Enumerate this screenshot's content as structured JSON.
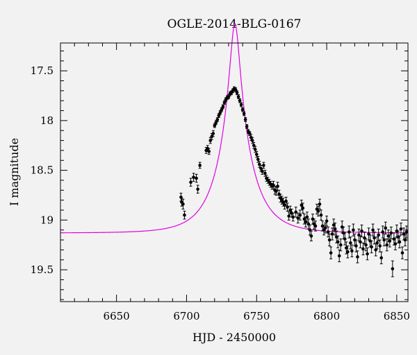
{
  "chart_data": {
    "type": "scatter",
    "title": "OGLE-2014-BLG-0167",
    "xlabel": "HJD - 2450000",
    "ylabel": "I magnitude",
    "xlim": [
      6610,
      6858
    ],
    "ylim": [
      19.82,
      17.22
    ],
    "y_inverted": true,
    "x_ticks": [
      6650,
      6700,
      6750,
      6800,
      6850
    ],
    "y_ticks": [
      17.5,
      18,
      18.5,
      19,
      19.5
    ],
    "x_tick_labels": [
      "6650",
      "6700",
      "6750",
      "6800",
      "6850"
    ],
    "y_tick_labels": [
      "17.5",
      "18",
      "18.5",
      "19",
      "19.5"
    ],
    "grid": false,
    "model_color": "#e000e0",
    "model": {
      "name": "",
      "t0": 6734.5,
      "u0": 0.145,
      "tE": 22.0,
      "baseline_mag": 19.13
    },
    "series": [
      {
        "name": "",
        "points": [
          [
            6696.0,
            18.77,
            0.04
          ],
          [
            6696.5,
            18.82,
            0.04
          ],
          [
            6697.5,
            18.84,
            0.05
          ],
          [
            6698.5,
            18.95,
            0.04
          ],
          [
            6703.0,
            18.62,
            0.04
          ],
          [
            6705.0,
            18.57,
            0.04
          ],
          [
            6707.0,
            18.58,
            0.04
          ],
          [
            6708.0,
            18.69,
            0.04
          ],
          [
            6709.5,
            18.45,
            0.03
          ],
          [
            6714.0,
            18.3,
            0.03
          ],
          [
            6715.0,
            18.28,
            0.03
          ],
          [
            6716.0,
            18.31,
            0.03
          ],
          [
            6717.0,
            18.2,
            0.03
          ],
          [
            6718.0,
            18.16,
            0.03
          ],
          [
            6719.0,
            18.13,
            0.03
          ],
          [
            6720.0,
            18.05,
            0.02
          ],
          [
            6721.0,
            18.02,
            0.02
          ],
          [
            6722.0,
            17.99,
            0.02
          ],
          [
            6723.0,
            17.95,
            0.02
          ],
          [
            6724.0,
            17.92,
            0.02
          ],
          [
            6725.0,
            17.89,
            0.02
          ],
          [
            6726.0,
            17.86,
            0.02
          ],
          [
            6727.0,
            17.82,
            0.02
          ],
          [
            6728.0,
            17.79,
            0.02
          ],
          [
            6729.0,
            17.77,
            0.02
          ],
          [
            6730.0,
            17.76,
            0.02
          ],
          [
            6731.0,
            17.73,
            0.02
          ],
          [
            6732.0,
            17.72,
            0.02
          ],
          [
            6733.0,
            17.7,
            0.02
          ],
          [
            6734.0,
            17.68,
            0.02
          ],
          [
            6735.0,
            17.69,
            0.02
          ],
          [
            6736.0,
            17.72,
            0.02
          ],
          [
            6737.0,
            17.76,
            0.02
          ],
          [
            6738.0,
            17.8,
            0.02
          ],
          [
            6739.0,
            17.84,
            0.02
          ],
          [
            6740.0,
            17.89,
            0.02
          ],
          [
            6741.0,
            17.93,
            0.02
          ],
          [
            6742.0,
            17.99,
            0.02
          ],
          [
            6743.0,
            18.06,
            0.02
          ],
          [
            6744.0,
            18.11,
            0.02
          ],
          [
            6745.0,
            18.13,
            0.02
          ],
          [
            6746.0,
            18.17,
            0.03
          ],
          [
            6747.0,
            18.2,
            0.03
          ],
          [
            6748.0,
            18.25,
            0.03
          ],
          [
            6749.0,
            18.29,
            0.03
          ],
          [
            6750.0,
            18.34,
            0.03
          ],
          [
            6751.0,
            18.39,
            0.03
          ],
          [
            6752.0,
            18.44,
            0.03
          ],
          [
            6753.0,
            18.48,
            0.03
          ],
          [
            6754.0,
            18.51,
            0.03
          ],
          [
            6755.0,
            18.45,
            0.03
          ],
          [
            6756.0,
            18.53,
            0.03
          ],
          [
            6757.0,
            18.58,
            0.03
          ],
          [
            6758.0,
            18.6,
            0.03
          ],
          [
            6759.0,
            18.62,
            0.03
          ],
          [
            6760.0,
            18.64,
            0.03
          ],
          [
            6761.0,
            18.66,
            0.03
          ],
          [
            6762.0,
            18.65,
            0.04
          ],
          [
            6763.0,
            18.7,
            0.04
          ],
          [
            6764.0,
            18.71,
            0.04
          ],
          [
            6765.0,
            18.66,
            0.04
          ],
          [
            6766.0,
            18.74,
            0.04
          ],
          [
            6767.0,
            18.78,
            0.04
          ],
          [
            6768.0,
            18.8,
            0.04
          ],
          [
            6769.0,
            18.82,
            0.04
          ],
          [
            6770.0,
            18.85,
            0.04
          ],
          [
            6771.0,
            18.81,
            0.04
          ],
          [
            6772.0,
            18.87,
            0.04
          ],
          [
            6773.0,
            18.96,
            0.04
          ],
          [
            6774.0,
            18.9,
            0.04
          ],
          [
            6775.0,
            18.93,
            0.04
          ],
          [
            6776.0,
            18.97,
            0.04
          ],
          [
            6778.0,
            18.92,
            0.05
          ],
          [
            6779.5,
            18.98,
            0.05
          ],
          [
            6781.0,
            18.95,
            0.05
          ],
          [
            6782.0,
            18.85,
            0.05
          ],
          [
            6783.0,
            18.88,
            0.05
          ],
          [
            6784.0,
            18.99,
            0.05
          ],
          [
            6785.0,
            19.02,
            0.05
          ],
          [
            6786.0,
            18.97,
            0.05
          ],
          [
            6787.0,
            19.04,
            0.05
          ],
          [
            6788.0,
            19.1,
            0.05
          ],
          [
            6789.0,
            19.16,
            0.05
          ],
          [
            6790.0,
            18.99,
            0.05
          ],
          [
            6791.0,
            19.04,
            0.05
          ],
          [
            6792.0,
            19.06,
            0.05
          ],
          [
            6793.0,
            18.89,
            0.05
          ],
          [
            6794.0,
            18.91,
            0.05
          ],
          [
            6795.0,
            18.84,
            0.05
          ],
          [
            6796.0,
            18.95,
            0.05
          ],
          [
            6797.0,
            19.06,
            0.05
          ],
          [
            6798.0,
            19.1,
            0.05
          ],
          [
            6799.0,
            19.08,
            0.05
          ],
          [
            6800.0,
            19.01,
            0.05
          ],
          [
            6801.0,
            19.12,
            0.05
          ],
          [
            6802.0,
            19.2,
            0.06
          ],
          [
            6803.0,
            19.33,
            0.06
          ],
          [
            6804.0,
            19.14,
            0.06
          ],
          [
            6805.0,
            19.05,
            0.06
          ],
          [
            6806.0,
            19.09,
            0.06
          ],
          [
            6807.0,
            19.17,
            0.06
          ],
          [
            6808.0,
            19.22,
            0.06
          ],
          [
            6809.0,
            19.36,
            0.06
          ],
          [
            6810.0,
            19.25,
            0.06
          ],
          [
            6811.0,
            19.07,
            0.06
          ],
          [
            6812.0,
            19.13,
            0.06
          ],
          [
            6813.0,
            19.19,
            0.06
          ],
          [
            6814.0,
            19.28,
            0.06
          ],
          [
            6815.0,
            19.32,
            0.06
          ],
          [
            6816.0,
            19.12,
            0.06
          ],
          [
            6817.0,
            19.23,
            0.06
          ],
          [
            6818.0,
            19.31,
            0.06
          ],
          [
            6819.0,
            19.1,
            0.06
          ],
          [
            6820.0,
            19.2,
            0.06
          ],
          [
            6821.0,
            19.26,
            0.06
          ],
          [
            6822.0,
            19.37,
            0.06
          ],
          [
            6823.0,
            19.15,
            0.06
          ],
          [
            6824.0,
            19.22,
            0.06
          ],
          [
            6825.0,
            19.11,
            0.06
          ],
          [
            6826.0,
            19.29,
            0.06
          ],
          [
            6827.0,
            19.18,
            0.06
          ],
          [
            6828.0,
            19.25,
            0.06
          ],
          [
            6829.0,
            19.34,
            0.06
          ],
          [
            6830.0,
            19.14,
            0.06
          ],
          [
            6831.0,
            19.21,
            0.06
          ],
          [
            6832.0,
            19.27,
            0.06
          ],
          [
            6833.0,
            19.1,
            0.06
          ],
          [
            6834.0,
            19.18,
            0.06
          ],
          [
            6835.0,
            19.3,
            0.06
          ],
          [
            6836.0,
            19.23,
            0.06
          ],
          [
            6837.0,
            19.15,
            0.06
          ],
          [
            6838.0,
            19.26,
            0.06
          ],
          [
            6839.0,
            19.38,
            0.06
          ],
          [
            6840.0,
            19.12,
            0.06
          ],
          [
            6841.0,
            19.2,
            0.06
          ],
          [
            6842.0,
            19.08,
            0.06
          ],
          [
            6843.0,
            19.25,
            0.06
          ],
          [
            6844.0,
            19.16,
            0.06
          ],
          [
            6845.0,
            19.21,
            0.06
          ],
          [
            6846.0,
            19.13,
            0.06
          ],
          [
            6847.0,
            19.49,
            0.08
          ],
          [
            6848.0,
            19.19,
            0.06
          ],
          [
            6849.0,
            19.24,
            0.06
          ],
          [
            6850.0,
            19.11,
            0.06
          ],
          [
            6851.0,
            19.17,
            0.06
          ],
          [
            6852.0,
            19.22,
            0.06
          ],
          [
            6853.0,
            19.09,
            0.06
          ],
          [
            6854.0,
            19.33,
            0.06
          ],
          [
            6855.0,
            19.14,
            0.06
          ],
          [
            6856.0,
            19.2,
            0.06
          ],
          [
            6857.0,
            19.12,
            0.06
          ]
        ]
      }
    ]
  }
}
